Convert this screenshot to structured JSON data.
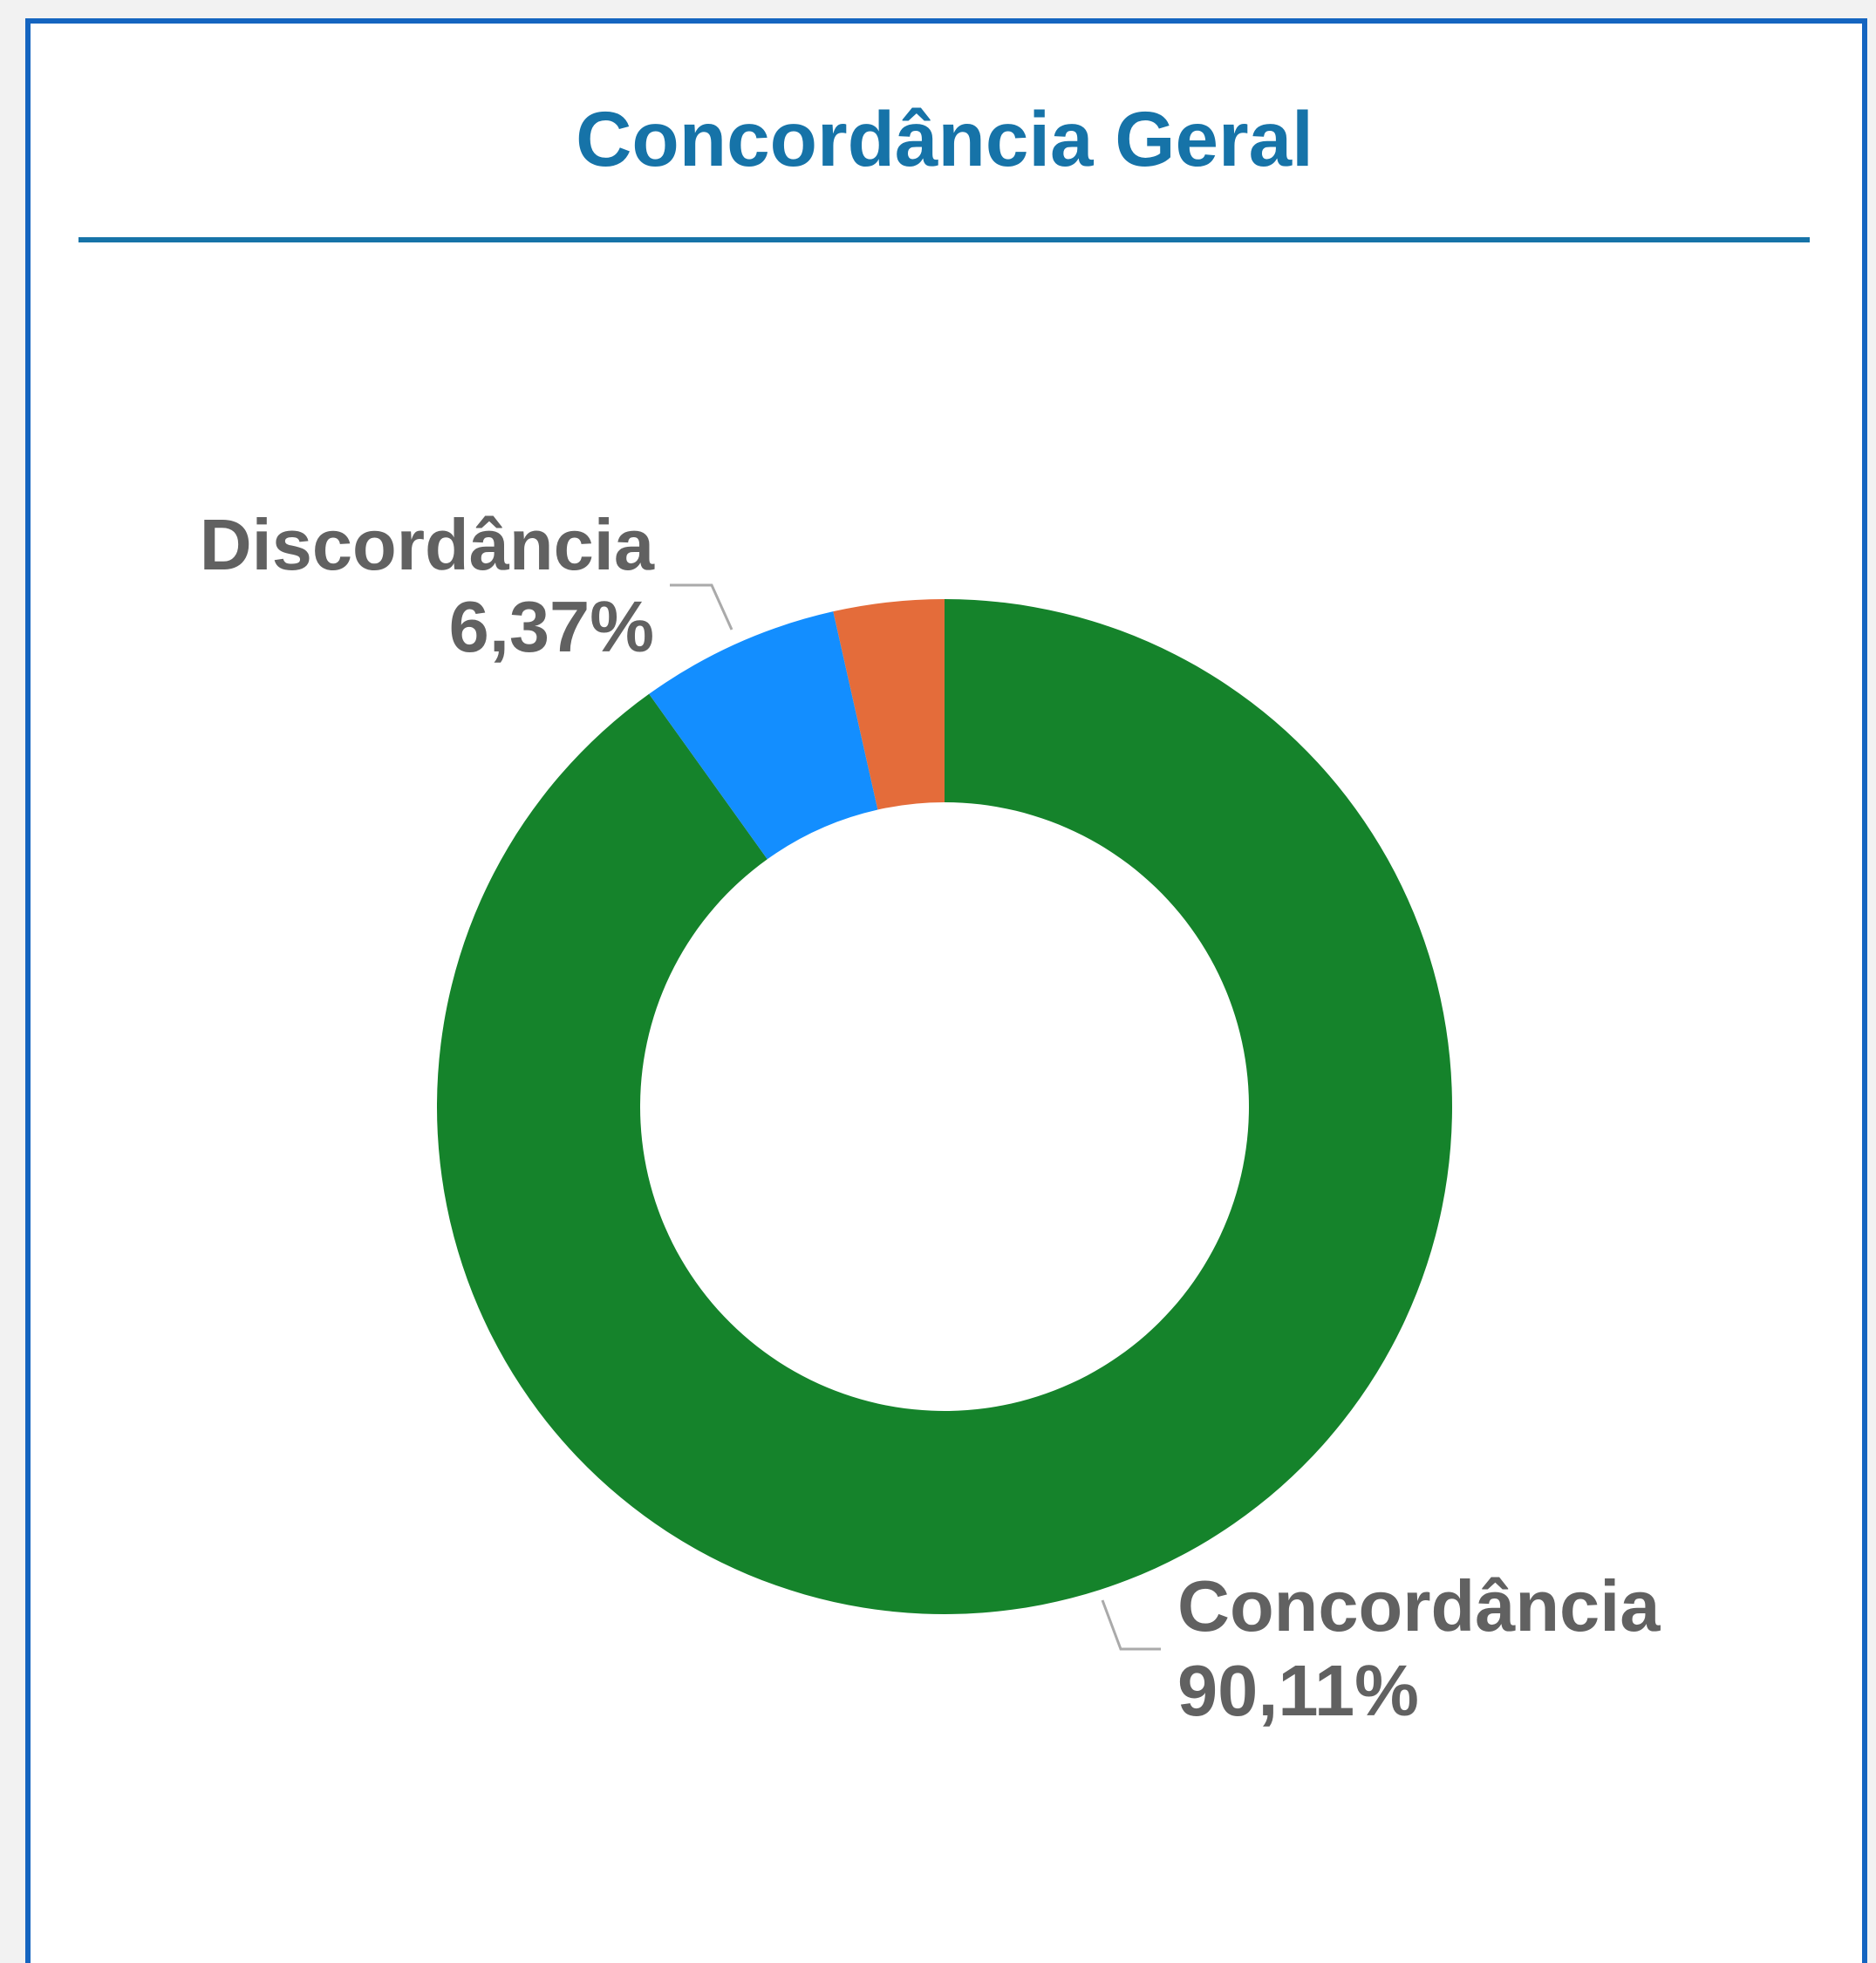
{
  "chart_data": {
    "type": "donut",
    "title": "Concordância Geral",
    "categories": [
      "Concordância",
      "Discordância",
      null
    ],
    "values": [
      90.11,
      6.37,
      3.52
    ],
    "value_labels": [
      "90,11%",
      "6,37%",
      null
    ],
    "colors": [
      "#15832b",
      "#138eff",
      "#e46c3a"
    ]
  }
}
